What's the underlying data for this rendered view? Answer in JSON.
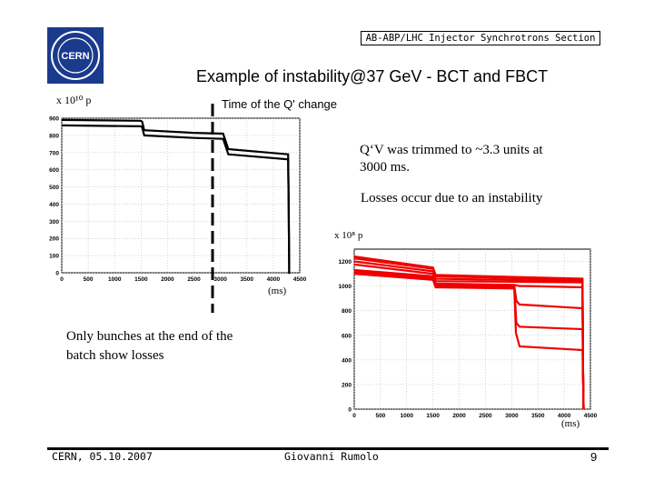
{
  "header": {
    "section_label": "AB-ABP/LHC Injector Synchrotrons Section",
    "title": "Example of instability@37 GeV - BCT and FBCT",
    "logo_text": "CERN"
  },
  "annotations": {
    "bct_unit": "x 10¹⁰ p",
    "q_change": "Time of the Q' change",
    "trim_note_line1": "Q‘V was trimmed to ~3.3 units at",
    "trim_note_line2": "3000 ms.",
    "losses_note": "Losses occur due to an instability",
    "fbct_unit": "x 10⁸ p",
    "bct_x_unit": "(ms)",
    "fbct_x_unit": "(ms)",
    "bunches_note_line1": "Only bunches at the end of the",
    "bunches_note_line2": "batch show losses"
  },
  "footer": {
    "date": "CERN, 05.10.2007",
    "author": "Giovanni Rumolo",
    "page": "9"
  },
  "colors": {
    "bct_series": "#000000",
    "fbct_series": "#ee0000",
    "marker_line": "#000000"
  },
  "chart_data": [
    {
      "type": "line",
      "name": "BCT",
      "xlim": [
        0,
        4500
      ],
      "ylim": [
        0,
        900
      ],
      "x_ticks": [
        0,
        500,
        1000,
        1500,
        2000,
        2500,
        3000,
        3500,
        4000,
        4500
      ],
      "y_ticks": [
        0,
        100,
        200,
        300,
        400,
        500,
        600,
        700,
        800,
        900
      ],
      "grid": true,
      "marker_x": 2450,
      "series": [
        {
          "x": [
            0,
            1490,
            1520,
            1560,
            2500,
            3050,
            3150,
            4280,
            4290,
            4300,
            4320
          ],
          "y": [
            890,
            885,
            880,
            830,
            815,
            810,
            720,
            690,
            400,
            0,
            0
          ]
        },
        {
          "x": [
            0,
            1490,
            1520,
            1560,
            2500,
            3050,
            3150,
            4280,
            4290,
            4300,
            4320
          ],
          "y": [
            858,
            853,
            848,
            800,
            785,
            780,
            690,
            660,
            400,
            0,
            0
          ]
        }
      ]
    },
    {
      "type": "line",
      "name": "FBCT",
      "xlim": [
        0,
        4500
      ],
      "ylim": [
        0,
        1300
      ],
      "x_ticks": [
        0,
        500,
        1000,
        1500,
        2000,
        2500,
        3000,
        3500,
        4000,
        4500
      ],
      "y_ticks": [
        0,
        200,
        400,
        600,
        800,
        1000,
        1200
      ],
      "grid": true,
      "series": [
        {
          "x": [
            0,
            1500,
            1550,
            4350,
            4360,
            4370
          ],
          "y": [
            1240,
            1150,
            1090,
            1060,
            300,
            0
          ]
        },
        {
          "x": [
            0,
            1500,
            1550,
            4350,
            4360,
            4370
          ],
          "y": [
            1225,
            1140,
            1080,
            1050,
            300,
            0
          ]
        },
        {
          "x": [
            0,
            1500,
            1550,
            4350,
            4360,
            4370
          ],
          "y": [
            1200,
            1120,
            1060,
            1040,
            300,
            0
          ]
        },
        {
          "x": [
            0,
            1500,
            1550,
            4350,
            4360,
            4370
          ],
          "y": [
            1175,
            1100,
            1040,
            1030,
            300,
            0
          ]
        },
        {
          "x": [
            0,
            1500,
            1550,
            3050,
            3150,
            3300,
            4350,
            4360,
            4370
          ],
          "y": [
            1130,
            1080,
            1020,
            1010,
            1000,
            1000,
            990,
            300,
            0
          ]
        },
        {
          "x": [
            0,
            1500,
            1550,
            3050,
            3090,
            3150,
            4350,
            4360,
            4370
          ],
          "y": [
            1120,
            1070,
            1010,
            1000,
            880,
            850,
            820,
            300,
            0
          ]
        },
        {
          "x": [
            0,
            1500,
            1550,
            3050,
            3090,
            3150,
            4350,
            4360,
            4370
          ],
          "y": [
            1110,
            1060,
            1000,
            990,
            700,
            670,
            650,
            300,
            0
          ]
        },
        {
          "x": [
            0,
            1500,
            1550,
            3050,
            3080,
            3150,
            4350,
            4360,
            4370
          ],
          "y": [
            1100,
            1050,
            990,
            980,
            620,
            510,
            480,
            250,
            0
          ]
        }
      ]
    }
  ]
}
